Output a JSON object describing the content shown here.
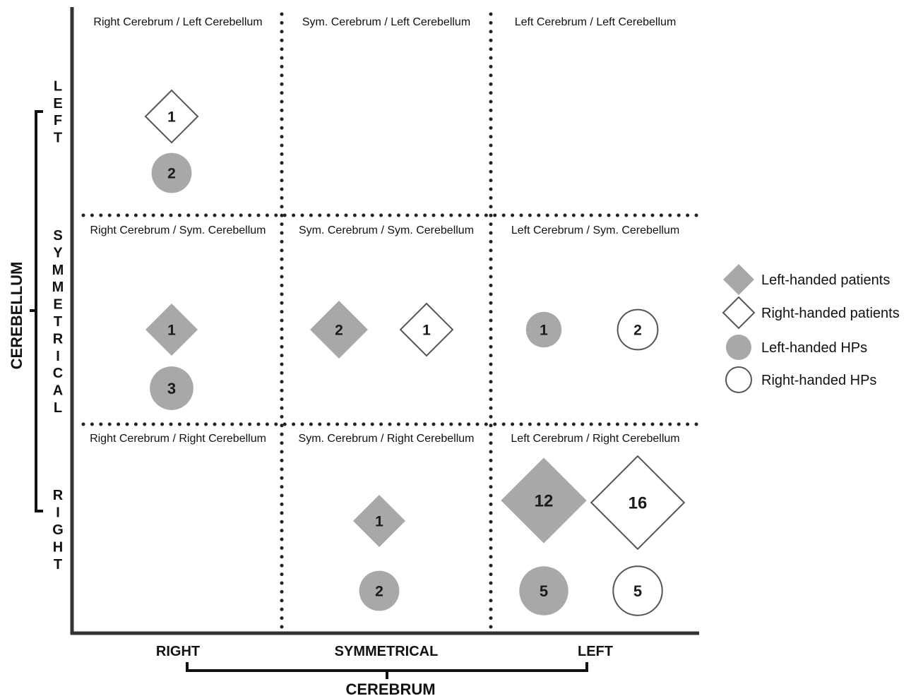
{
  "chart_data": {
    "type": "scatter",
    "x_axis": {
      "title": "CEREBRUM",
      "categories": [
        "RIGHT",
        "SYMMETRICAL",
        "LEFT"
      ]
    },
    "y_axis": {
      "title": "CEREBELLUM",
      "categories": [
        "LEFT",
        "SYMMETRICAL",
        "RIGHT"
      ]
    },
    "cells": [
      {
        "cerebrum": "RIGHT",
        "cerebellum": "LEFT",
        "label": "Right Cerebrum / Left Cerebellum"
      },
      {
        "cerebrum": "SYMMETRICAL",
        "cerebellum": "LEFT",
        "label": "Sym. Cerebrum / Left Cerebellum"
      },
      {
        "cerebrum": "LEFT",
        "cerebellum": "LEFT",
        "label": "Left Cerebrum / Left Cerebellum"
      },
      {
        "cerebrum": "RIGHT",
        "cerebellum": "SYMMETRICAL",
        "label": "Right Cerebrum / Sym. Cerebellum"
      },
      {
        "cerebrum": "SYMMETRICAL",
        "cerebellum": "SYMMETRICAL",
        "label": "Sym. Cerebrum / Sym. Cerebellum"
      },
      {
        "cerebrum": "LEFT",
        "cerebellum": "SYMMETRICAL",
        "label": "Left Cerebrum / Sym. Cerebellum"
      },
      {
        "cerebrum": "RIGHT",
        "cerebellum": "RIGHT",
        "label": "Right Cerebrum / Right Cerebellum"
      },
      {
        "cerebrum": "SYMMETRICAL",
        "cerebellum": "RIGHT",
        "label": "Sym. Cerebrum / Right Cerebellum"
      },
      {
        "cerebrum": "LEFT",
        "cerebellum": "RIGHT",
        "label": "Left Cerebrum / Right Cerebellum"
      }
    ],
    "series": [
      {
        "name": "Left-handed patients",
        "shape": "diamond",
        "fill": "#a8a8a8"
      },
      {
        "name": "Right-handed patients",
        "shape": "diamond",
        "fill": "#ffffff"
      },
      {
        "name": "Left-handed HPs",
        "shape": "circle",
        "fill": "#a8a8a8"
      },
      {
        "name": "Right-handed HPs",
        "shape": "circle",
        "fill": "#ffffff"
      }
    ],
    "points": [
      {
        "series": "Right-handed patients",
        "cerebrum": "RIGHT",
        "cerebellum": "LEFT",
        "value": 1
      },
      {
        "series": "Left-handed HPs",
        "cerebrum": "RIGHT",
        "cerebellum": "LEFT",
        "value": 2
      },
      {
        "series": "Left-handed patients",
        "cerebrum": "RIGHT",
        "cerebellum": "SYMMETRICAL",
        "value": 1
      },
      {
        "series": "Left-handed HPs",
        "cerebrum": "RIGHT",
        "cerebellum": "SYMMETRICAL",
        "value": 3
      },
      {
        "series": "Left-handed patients",
        "cerebrum": "SYMMETRICAL",
        "cerebellum": "SYMMETRICAL",
        "value": 2
      },
      {
        "series": "Right-handed patients",
        "cerebrum": "SYMMETRICAL",
        "cerebellum": "SYMMETRICAL",
        "value": 1
      },
      {
        "series": "Left-handed HPs",
        "cerebrum": "LEFT",
        "cerebellum": "SYMMETRICAL",
        "value": 1
      },
      {
        "series": "Right-handed HPs",
        "cerebrum": "LEFT",
        "cerebellum": "SYMMETRICAL",
        "value": 2
      },
      {
        "series": "Left-handed patients",
        "cerebrum": "SYMMETRICAL",
        "cerebellum": "RIGHT",
        "value": 1
      },
      {
        "series": "Left-handed HPs",
        "cerebrum": "SYMMETRICAL",
        "cerebellum": "RIGHT",
        "value": 2
      },
      {
        "series": "Left-handed patients",
        "cerebrum": "LEFT",
        "cerebellum": "RIGHT",
        "value": 12
      },
      {
        "series": "Right-handed patients",
        "cerebrum": "LEFT",
        "cerebellum": "RIGHT",
        "value": 16
      },
      {
        "series": "Left-handed HPs",
        "cerebrum": "LEFT",
        "cerebellum": "RIGHT",
        "value": 5
      },
      {
        "series": "Right-handed HPs",
        "cerebrum": "LEFT",
        "cerebellum": "RIGHT",
        "value": 5
      }
    ],
    "grid": "dotted",
    "legend": "right"
  }
}
